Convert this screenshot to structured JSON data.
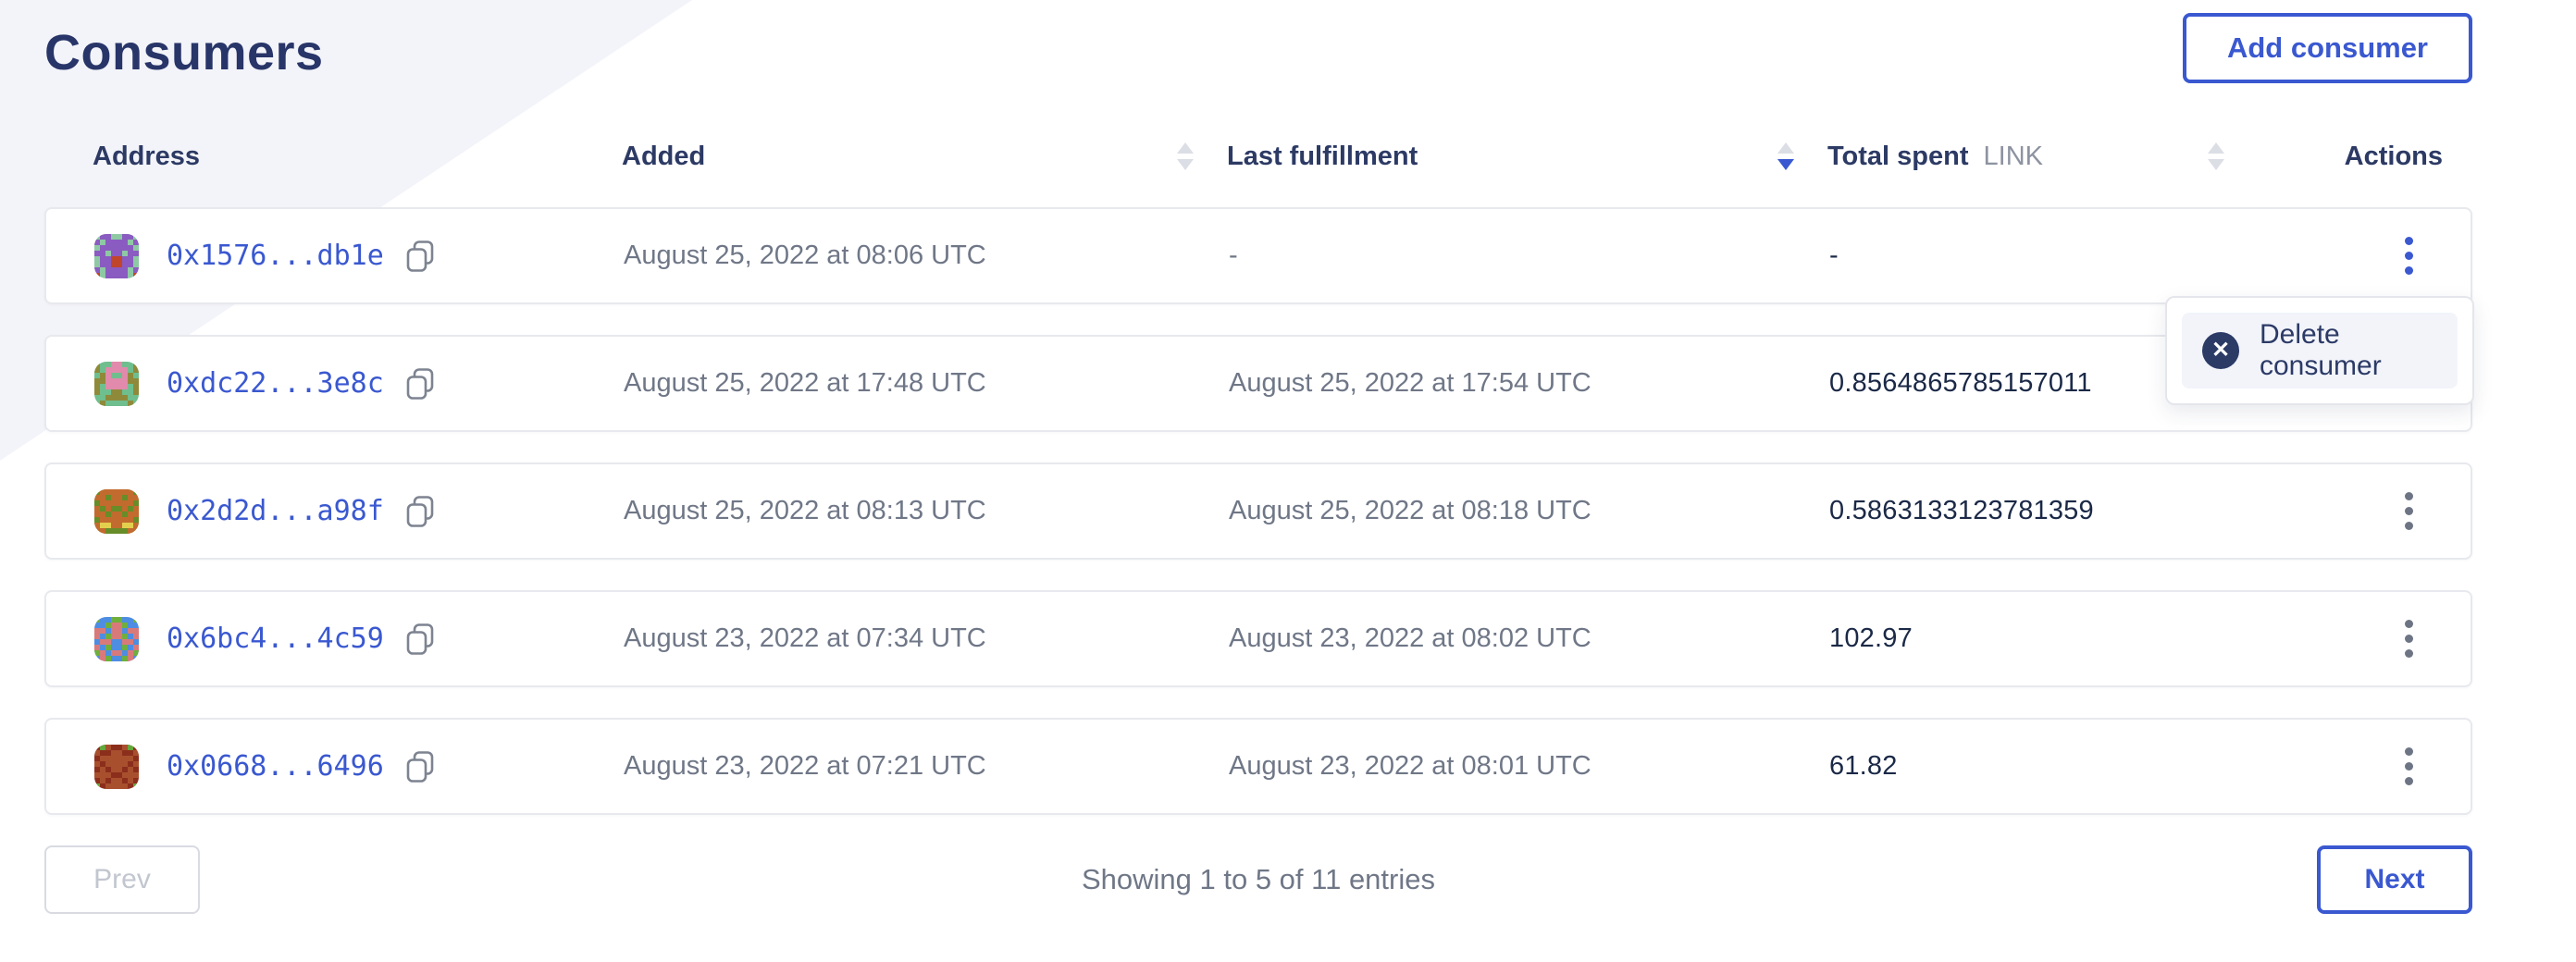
{
  "page": {
    "title": "Consumers"
  },
  "toolbar": {
    "add_consumer_label": "Add consumer"
  },
  "table": {
    "columns": [
      {
        "id": "address",
        "label": "Address",
        "sortable": false,
        "sort": null
      },
      {
        "id": "added",
        "label": "Added",
        "sortable": true,
        "sort": "none"
      },
      {
        "id": "last",
        "label": "Last fulfillment",
        "sortable": true,
        "sort": "desc"
      },
      {
        "id": "total",
        "label": "Total spent",
        "unit": "LINK",
        "sortable": true,
        "sort": "none"
      },
      {
        "id": "actions",
        "label": "Actions",
        "sortable": false,
        "sort": null
      }
    ],
    "rows": [
      {
        "address_short": "0x1576...db1e",
        "added": "August 25, 2022 at 08:06 UTC",
        "last_fulfillment": "-",
        "total_spent": "-",
        "menu_open": true,
        "identicon": {
          "colors": [
            "#8ec9a4",
            "#8a5bc0",
            "#c0452a"
          ],
          "pattern": [
            "01100110",
            "10111101",
            "01111110",
            "11011011",
            "01122110",
            "01122110",
            "10111101",
            "20111102"
          ]
        }
      },
      {
        "address_short": "0xdc22...3e8c",
        "added": "August 25, 2022 at 17:48 UTC",
        "last_fulfillment": "August 25, 2022 at 17:54 UTC",
        "total_spent": "0.8564865785157011",
        "menu_open": false,
        "identicon": {
          "colors": [
            "#6fbe8d",
            "#8f8a3a",
            "#e18aab"
          ],
          "pattern": [
            "10022001",
            "10222201",
            "01200210",
            "11222211",
            "10222201",
            "10011001",
            "00111100",
            "01000010"
          ]
        }
      },
      {
        "address_short": "0x2d2d...a98f",
        "added": "August 25, 2022 at 08:13 UTC",
        "last_fulfillment": "August 25, 2022 at 08:18 UTC",
        "total_spent": "0.5863133123781359",
        "menu_open": false,
        "identicon": {
          "colors": [
            "#678c28",
            "#c26b2e",
            "#e3cf4e"
          ],
          "pattern": [
            "01111110",
            "11011011",
            "01111110",
            "10100101",
            "11011011",
            "01111110",
            "12211221",
            "11000011"
          ]
        }
      },
      {
        "address_short": "0x6bc4...4c59",
        "added": "August 23, 2022 at 07:34 UTC",
        "last_fulfillment": "August 23, 2022 at 08:02 UTC",
        "total_spent": "102.97",
        "menu_open": false,
        "identicon": {
          "colors": [
            "#4d8de2",
            "#d97a7a",
            "#6faf3c"
          ],
          "pattern": [
            "20022002",
            "00211200",
            "11011011",
            "10211201",
            "01100110",
            "10200201",
            "21011012",
            "01200210"
          ]
        }
      },
      {
        "address_short": "0x0668...6496",
        "added": "August 23, 2022 at 07:21 UTC",
        "last_fulfillment": "August 23, 2022 at 08:01 UTC",
        "total_spent": "61.82",
        "menu_open": false,
        "identicon": {
          "colors": [
            "#8c2e1c",
            "#a8502e",
            "#64a83c"
          ],
          "pattern": [
            "02100120",
            "10011001",
            "01111110",
            "10111101",
            "01011010",
            "11100111",
            "01011010",
            "20111102"
          ]
        }
      }
    ]
  },
  "context_menu": {
    "items": [
      {
        "label": "Delete consumer",
        "icon": "x-circle-icon"
      }
    ]
  },
  "pagination": {
    "prev_label": "Prev",
    "summary": "Showing 1 to 5 of 11 entries",
    "next_label": "Next"
  },
  "colors": {
    "primary_blue": "#3a58d0",
    "heading_navy": "#2c3a64",
    "text_gray": "#6f7787",
    "value_navy": "#1b2947",
    "background_accent": "#f3f4f9",
    "row_border": "#e8e9ee"
  }
}
